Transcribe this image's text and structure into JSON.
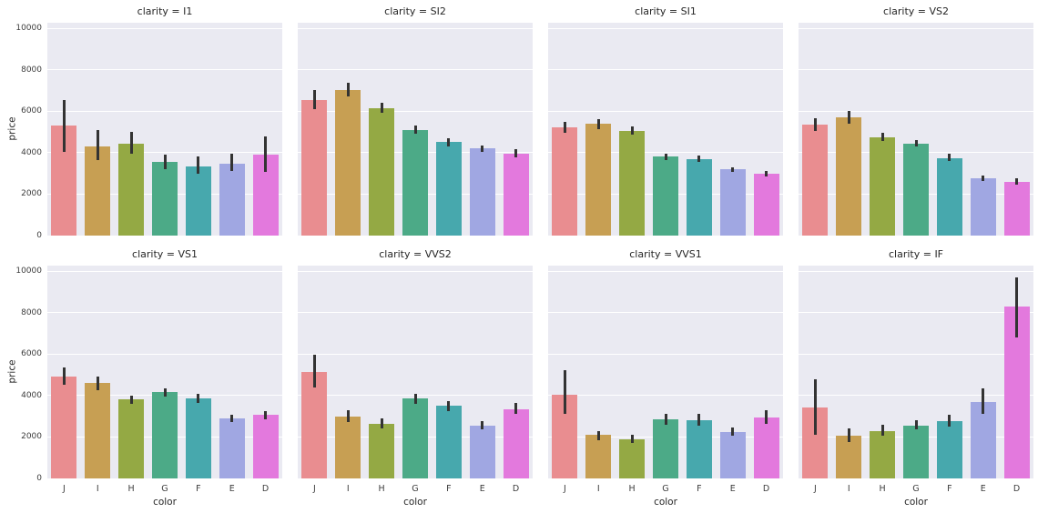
{
  "figure": {
    "plot_bg": "#eaeaf2",
    "grid_color": "#ffffff",
    "error_bar_color": "#333333",
    "bar_colors": [
      "#e98d90",
      "#c79f53",
      "#94a944",
      "#4caa87",
      "#47a8ad",
      "#a0a7e2",
      "#e379dd"
    ],
    "yticks": [
      0,
      2000,
      4000,
      6000,
      8000,
      10000
    ]
  },
  "chart_data": {
    "type": "bar",
    "facet_variable": "clarity",
    "categories": [
      "J",
      "I",
      "H",
      "G",
      "F",
      "E",
      "D"
    ],
    "xlabel": "color",
    "ylabel": "price",
    "ylim": [
      0,
      10000
    ],
    "error_bars": "confidence interval whiskers",
    "legend_position": "none",
    "grid": true,
    "facets": [
      {
        "title": "clarity = I1",
        "clarity": "I1",
        "values": [
          5300,
          4300,
          4450,
          3550,
          3350,
          3450,
          3900
        ],
        "ci_low": [
          4050,
          3650,
          3950,
          3200,
          3000,
          3100,
          3050
        ],
        "ci_high": [
          6550,
          5100,
          5000,
          3900,
          3800,
          3950,
          4800
        ]
      },
      {
        "title": "clarity = SI2",
        "clarity": "SI2",
        "values": [
          6550,
          7000,
          6150,
          5100,
          4500,
          4200,
          3950
        ],
        "ci_low": [
          6100,
          6700,
          5900,
          4900,
          4300,
          4050,
          3750
        ],
        "ci_high": [
          7000,
          7350,
          6400,
          5300,
          4700,
          4350,
          4150
        ]
      },
      {
        "title": "clarity = SI1",
        "clarity": "SI1",
        "values": [
          5200,
          5400,
          5050,
          3800,
          3700,
          3200,
          3000
        ],
        "ci_low": [
          4950,
          5150,
          4850,
          3650,
          3550,
          3050,
          2850
        ],
        "ci_high": [
          5500,
          5600,
          5250,
          3950,
          3850,
          3300,
          3100
        ]
      },
      {
        "title": "clarity = VS2",
        "clarity": "VS2",
        "values": [
          5350,
          5700,
          4750,
          4450,
          3750,
          2750,
          2600
        ],
        "ci_low": [
          5050,
          5400,
          4550,
          4300,
          3600,
          2650,
          2450
        ],
        "ci_high": [
          5650,
          6000,
          4950,
          4600,
          3950,
          2900,
          2750
        ]
      },
      {
        "title": "clarity = VS1",
        "clarity": "VS1",
        "values": [
          4900,
          4600,
          3800,
          4150,
          3850,
          2900,
          3050
        ],
        "ci_low": [
          4500,
          4250,
          3600,
          3950,
          3650,
          2700,
          2850
        ],
        "ci_high": [
          5350,
          4900,
          4000,
          4350,
          4100,
          3050,
          3250
        ]
      },
      {
        "title": "clarity = VVS2",
        "clarity": "VVS2",
        "values": [
          5150,
          3000,
          2650,
          3850,
          3500,
          2550,
          3350
        ],
        "ci_low": [
          4400,
          2700,
          2400,
          3600,
          3250,
          2350,
          3100
        ],
        "ci_high": [
          5950,
          3300,
          2900,
          4100,
          3750,
          2750,
          3650
        ]
      },
      {
        "title": "clarity = VVS1",
        "clarity": "VVS1",
        "values": [
          4050,
          2100,
          1900,
          2850,
          2800,
          2250,
          2950
        ],
        "ci_low": [
          3100,
          1850,
          1700,
          2600,
          2550,
          2050,
          2650
        ],
        "ci_high": [
          5200,
          2300,
          2100,
          3100,
          3100,
          2450,
          3300
        ]
      },
      {
        "title": "clarity = IF",
        "clarity": "IF",
        "values": [
          3400,
          2050,
          2300,
          2550,
          2750,
          3700,
          8300
        ],
        "ci_low": [
          2100,
          1750,
          2050,
          2350,
          2500,
          3100,
          6800
        ],
        "ci_high": [
          4800,
          2400,
          2600,
          2800,
          3050,
          4350,
          9700
        ]
      }
    ]
  }
}
